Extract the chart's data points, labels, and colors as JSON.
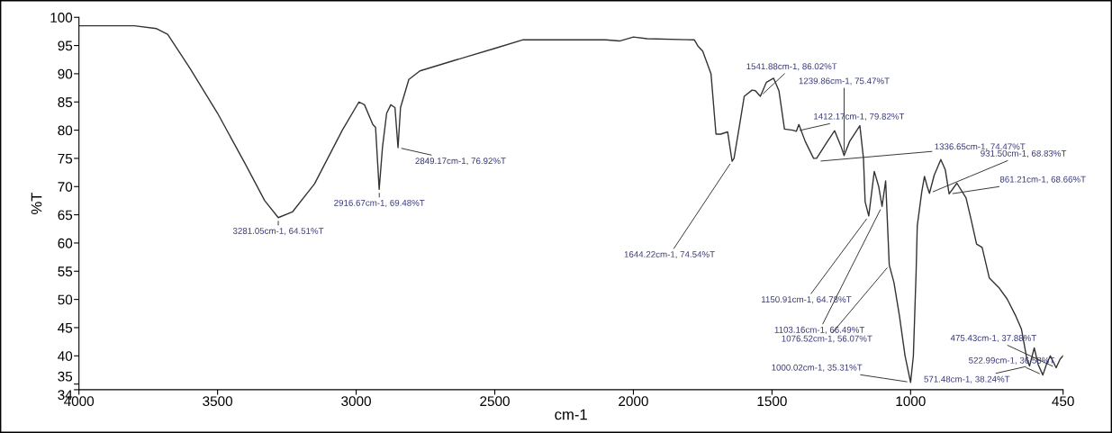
{
  "chart_data": {
    "type": "line",
    "xlabel": "cm-1",
    "ylabel": "%T",
    "xlim": [
      4000,
      450
    ],
    "ylim": [
      34,
      100
    ],
    "xticks": [
      4000,
      3500,
      3000,
      2500,
      2000,
      1500,
      1000,
      450
    ],
    "yticks": [
      34,
      35,
      40,
      45,
      50,
      55,
      60,
      65,
      70,
      75,
      80,
      85,
      90,
      95,
      100
    ],
    "grid": false,
    "legend": false,
    "marker": "none",
    "line_style": "solid",
    "series": [
      {
        "color": "#333333",
        "x": [
          4000,
          3800,
          3720,
          3680,
          3600,
          3500,
          3400,
          3330,
          3281,
          3230,
          3150,
          3050,
          2990,
          2970,
          2940,
          2930,
          2917,
          2905,
          2890,
          2875,
          2860,
          2849,
          2840,
          2810,
          2770,
          2650,
          2500,
          2400,
          2200,
          2100,
          2050,
          2000,
          1950,
          1780,
          1767,
          1750,
          1720,
          1702,
          1685,
          1660,
          1644,
          1637,
          1620,
          1600,
          1572,
          1560,
          1542,
          1520,
          1494,
          1475,
          1455,
          1425,
          1412,
          1403,
          1380,
          1350,
          1339,
          1300,
          1274,
          1250,
          1240,
          1220,
          1183,
          1170,
          1164,
          1151,
          1131,
          1115,
          1103,
          1090,
          1077,
          1060,
          1040,
          1020,
          1000,
          990,
          980,
          976,
          960,
          950,
          940,
          932,
          915,
          891,
          875,
          861,
          833,
          800,
          781,
          762,
          742,
          716,
          680,
          652,
          620,
          600,
          580,
          571,
          554,
          540,
          523,
          510,
          496,
          475,
          460,
          450
        ],
        "values": [
          98.5,
          98.5,
          98,
          97,
          91,
          83,
          74,
          67.5,
          64.5,
          65.5,
          70.5,
          80,
          85,
          84.5,
          81,
          80.5,
          69.5,
          77,
          83,
          84.5,
          84,
          76.9,
          84,
          89,
          90.5,
          92.3,
          94.5,
          96,
          96,
          96,
          95.8,
          96.5,
          96.2,
          96,
          94.9,
          94,
          90,
          79.3,
          79.3,
          79.7,
          74.5,
          75,
          80,
          86,
          87.1,
          87,
          86,
          88.5,
          89.2,
          87,
          80.2,
          80,
          79.8,
          81,
          78,
          75,
          75,
          78,
          79.9,
          77,
          75.5,
          78,
          80.8,
          75,
          67.3,
          64.8,
          72.7,
          70,
          66.5,
          71,
          56.1,
          53,
          47,
          40,
          35.3,
          40,
          55,
          63,
          69,
          71.8,
          70,
          68.8,
          72,
          74.8,
          73,
          68.7,
          70.6,
          68,
          64,
          59.8,
          59.2,
          53.8,
          52,
          50.1,
          47,
          44.7,
          39.3,
          38.2,
          41.4,
          38.5,
          36.6,
          38.5,
          40,
          37.9,
          39.5,
          40
        ]
      }
    ],
    "annotations": [
      {
        "text": "3281.05cm-1, 64.51%T",
        "x": 3281.05,
        "y": 64.51
      },
      {
        "text": "2916.67cm-1, 69.48%T",
        "x": 2916.67,
        "y": 69.48
      },
      {
        "text": "2849.17cm-1, 76.92%T",
        "x": 2849.17,
        "y": 76.92
      },
      {
        "text": "1644.22cm-1, 74.54%T",
        "x": 1644.22,
        "y": 74.54
      },
      {
        "text": "1541.88cm-1, 86.02%T",
        "x": 1541.88,
        "y": 86.02
      },
      {
        "text": "1412.17cm-1, 79.82%T",
        "x": 1412.17,
        "y": 79.82
      },
      {
        "text": "1336.65cm-1, 74.47%T",
        "x": 1336.65,
        "y": 74.47
      },
      {
        "text": "1239.86cm-1, 75.47%T",
        "x": 1239.86,
        "y": 75.47
      },
      {
        "text": "1150.91cm-1, 64.78%T",
        "x": 1150.91,
        "y": 64.78
      },
      {
        "text": "1103.16cm-1, 66.49%T",
        "x": 1103.16,
        "y": 66.49
      },
      {
        "text": "1076.52cm-1, 56.07%T",
        "x": 1076.52,
        "y": 56.07
      },
      {
        "text": "1000.02cm-1, 35.31%T",
        "x": 1000.02,
        "y": 35.31
      },
      {
        "text": "931.50cm-1, 68.83%T",
        "x": 931.5,
        "y": 68.83
      },
      {
        "text": "861.21cm-1, 68.66%T",
        "x": 861.21,
        "y": 68.66
      },
      {
        "text": "571.48cm-1, 38.24%T",
        "x": 571.48,
        "y": 38.24
      },
      {
        "text": "522.99cm-1, 36.58%T",
        "x": 522.99,
        "y": 36.58
      },
      {
        "text": "475.43cm-1, 37.88%T",
        "x": 475.43,
        "y": 37.88
      }
    ]
  }
}
